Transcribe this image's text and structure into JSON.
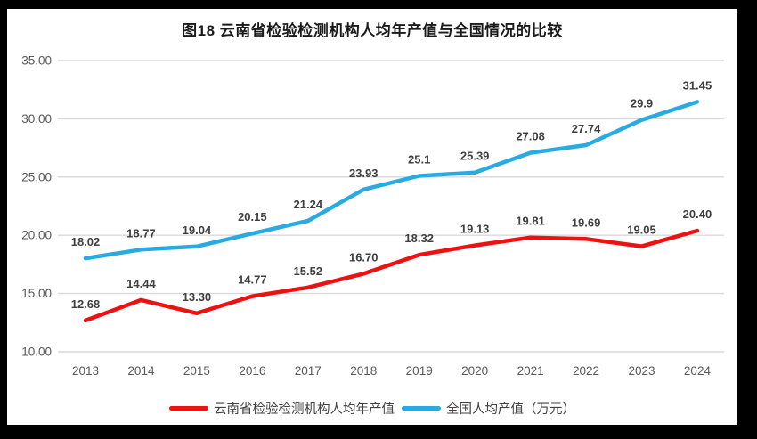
{
  "title": "图18  云南省检验检测机构人均年产值与全国情况的比较",
  "chart_data": {
    "type": "line",
    "title": "图18  云南省检验检测机构人均年产值与全国情况的比较",
    "categories": [
      "2013",
      "2014",
      "2015",
      "2016",
      "2017",
      "2018",
      "2019",
      "2020",
      "2021",
      "2022",
      "2023",
      "2024"
    ],
    "series": [
      {
        "name": "云南省检验检测机构人均年产值",
        "color": "#ee1111",
        "values": [
          12.68,
          14.44,
          13.3,
          14.77,
          15.52,
          16.7,
          18.32,
          19.13,
          19.81,
          19.69,
          19.05,
          20.4
        ],
        "labels": [
          "12.68",
          "14.44",
          "13.30",
          "14.77",
          "15.52",
          "16.70",
          "18.32",
          "19.13",
          "19.81",
          "19.69",
          "19.05",
          "20.40"
        ]
      },
      {
        "name": "全国人均产值（万元）",
        "color": "#29abe2",
        "values": [
          18.02,
          18.77,
          19.04,
          20.15,
          21.24,
          23.93,
          25.1,
          25.39,
          27.08,
          27.74,
          29.9,
          31.45
        ],
        "labels": [
          "18.02",
          "18.77",
          "19.04",
          "20.15",
          "21.24",
          "23.93",
          "25.1",
          "25.39",
          "27.08",
          "27.74",
          "29.9",
          "31.45"
        ]
      }
    ],
    "ylim": [
      10,
      35
    ],
    "yticks": [
      "35.00",
      "30.00",
      "25.00",
      "20.00",
      "15.00",
      "10.00"
    ],
    "xlabel": "",
    "ylabel": "",
    "grid": true,
    "legend_position": "bottom",
    "colors": {
      "grid": "#d9d9d9",
      "axis_text": "#595959",
      "data_label_text": "#3f3f3f",
      "frame_bg": "#000000",
      "canvas_bg": "#ffffff"
    }
  }
}
